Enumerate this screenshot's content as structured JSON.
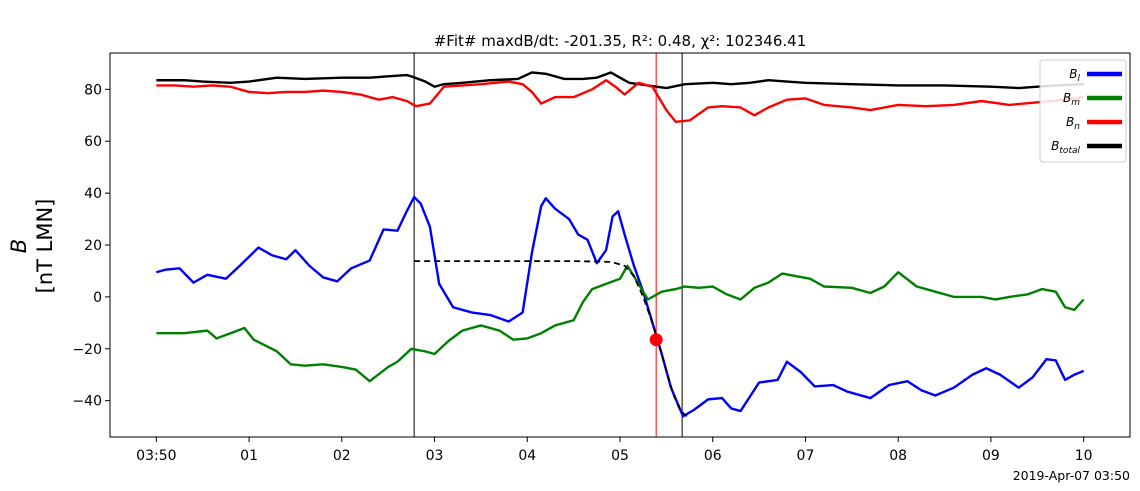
{
  "title": "#Fit# maxdB/dt: -201.35, R²: 0.48, χ²: 102346.41",
  "ylabel_line1": "B",
  "ylabel_line2": "[nT LMN]",
  "date_label": "2019-Apr-07 03:50",
  "chart_data": {
    "type": "line",
    "x_unit": "minutes after 03:50 on 2019-Apr-07",
    "xlim": [
      -0.5,
      10.5
    ],
    "ylim": [
      -54,
      94
    ],
    "grid": false,
    "legend_position": "top-right",
    "x_ticks": [
      {
        "x": 0,
        "label": "03:50"
      },
      {
        "x": 1,
        "label": "01"
      },
      {
        "x": 2,
        "label": "02"
      },
      {
        "x": 3,
        "label": "03"
      },
      {
        "x": 4,
        "label": "04"
      },
      {
        "x": 5,
        "label": "05"
      },
      {
        "x": 6,
        "label": "06"
      },
      {
        "x": 7,
        "label": "07"
      },
      {
        "x": 8,
        "label": "08"
      },
      {
        "x": 9,
        "label": "09"
      },
      {
        "x": 10,
        "label": "10"
      }
    ],
    "y_ticks": [
      {
        "y": -40,
        "label": "−40"
      },
      {
        "y": -20,
        "label": "−20"
      },
      {
        "y": 0,
        "label": "0"
      },
      {
        "y": 20,
        "label": "20"
      },
      {
        "y": 40,
        "label": "40"
      },
      {
        "y": 60,
        "label": "60"
      },
      {
        "y": 80,
        "label": "80"
      }
    ],
    "series": [
      {
        "name": "B_total",
        "legend_main": "B",
        "legend_sub": "total",
        "color": "#000000",
        "points": [
          [
            0,
            83.5
          ],
          [
            0.3,
            83.5
          ],
          [
            0.5,
            83
          ],
          [
            0.8,
            82.5
          ],
          [
            1.0,
            83
          ],
          [
            1.3,
            84.5
          ],
          [
            1.6,
            84
          ],
          [
            2.0,
            84.5
          ],
          [
            2.3,
            84.5
          ],
          [
            2.5,
            85
          ],
          [
            2.7,
            85.5
          ],
          [
            2.75,
            85
          ],
          [
            2.9,
            83
          ],
          [
            3.0,
            81
          ],
          [
            3.1,
            82
          ],
          [
            3.3,
            82.5
          ],
          [
            3.6,
            83.5
          ],
          [
            3.9,
            84
          ],
          [
            4.05,
            86.5
          ],
          [
            4.2,
            86
          ],
          [
            4.4,
            84
          ],
          [
            4.6,
            84
          ],
          [
            4.75,
            84.5
          ],
          [
            4.9,
            86.5
          ],
          [
            5.0,
            84.5
          ],
          [
            5.1,
            82.5
          ],
          [
            5.3,
            81.5
          ],
          [
            5.5,
            80.5
          ],
          [
            5.7,
            82
          ],
          [
            6.0,
            82.5
          ],
          [
            6.2,
            82
          ],
          [
            6.4,
            82.5
          ],
          [
            6.6,
            83.5
          ],
          [
            6.8,
            83
          ],
          [
            7.0,
            82.5
          ],
          [
            7.5,
            82
          ],
          [
            8.0,
            81.5
          ],
          [
            8.5,
            81.5
          ],
          [
            9.0,
            81
          ],
          [
            9.3,
            80.5
          ],
          [
            9.5,
            81
          ],
          [
            9.7,
            81.5
          ],
          [
            10.0,
            82
          ]
        ]
      },
      {
        "name": "B_n",
        "legend_main": "B",
        "legend_sub": "n",
        "color": "#ff0000",
        "points": [
          [
            0,
            81.5
          ],
          [
            0.2,
            81.5
          ],
          [
            0.4,
            81
          ],
          [
            0.6,
            81.5
          ],
          [
            0.8,
            81
          ],
          [
            1.0,
            79
          ],
          [
            1.2,
            78.5
          ],
          [
            1.4,
            79
          ],
          [
            1.6,
            79
          ],
          [
            1.8,
            79.5
          ],
          [
            2.0,
            79
          ],
          [
            2.2,
            78
          ],
          [
            2.4,
            76
          ],
          [
            2.55,
            77
          ],
          [
            2.7,
            75.5
          ],
          [
            2.8,
            73.5
          ],
          [
            2.95,
            74.5
          ],
          [
            3.1,
            81
          ],
          [
            3.3,
            81.5
          ],
          [
            3.5,
            82
          ],
          [
            3.8,
            83
          ],
          [
            3.95,
            82
          ],
          [
            4.05,
            79
          ],
          [
            4.15,
            74.5
          ],
          [
            4.3,
            77
          ],
          [
            4.5,
            77
          ],
          [
            4.7,
            80
          ],
          [
            4.85,
            83.5
          ],
          [
            4.95,
            81
          ],
          [
            5.05,
            78
          ],
          [
            5.2,
            82.5
          ],
          [
            5.35,
            81
          ],
          [
            5.5,
            72
          ],
          [
            5.6,
            67.5
          ],
          [
            5.75,
            68
          ],
          [
            5.95,
            73
          ],
          [
            6.1,
            73.5
          ],
          [
            6.3,
            73
          ],
          [
            6.45,
            70
          ],
          [
            6.6,
            73
          ],
          [
            6.8,
            76
          ],
          [
            7.0,
            76.5
          ],
          [
            7.2,
            74
          ],
          [
            7.5,
            73
          ],
          [
            7.7,
            72
          ],
          [
            8.0,
            74
          ],
          [
            8.3,
            73.5
          ],
          [
            8.6,
            74
          ],
          [
            8.9,
            75.5
          ],
          [
            9.2,
            74
          ],
          [
            9.5,
            75
          ],
          [
            9.8,
            76
          ],
          [
            10.0,
            77
          ]
        ]
      },
      {
        "name": "B_l",
        "legend_main": "B",
        "legend_sub": "l",
        "color": "#0000ff",
        "points": [
          [
            0,
            9.5
          ],
          [
            0.1,
            10.5
          ],
          [
            0.25,
            11
          ],
          [
            0.4,
            5.5
          ],
          [
            0.55,
            8.5
          ],
          [
            0.75,
            7
          ],
          [
            0.9,
            12
          ],
          [
            1.1,
            19
          ],
          [
            1.25,
            16
          ],
          [
            1.4,
            14.5
          ],
          [
            1.5,
            18
          ],
          [
            1.65,
            12
          ],
          [
            1.8,
            7.5
          ],
          [
            1.95,
            6
          ],
          [
            2.1,
            11
          ],
          [
            2.3,
            14
          ],
          [
            2.45,
            26
          ],
          [
            2.6,
            25.5
          ],
          [
            2.7,
            33
          ],
          [
            2.78,
            38.5
          ],
          [
            2.85,
            36
          ],
          [
            2.95,
            27
          ],
          [
            3.05,
            5
          ],
          [
            3.2,
            -4
          ],
          [
            3.4,
            -6
          ],
          [
            3.6,
            -7
          ],
          [
            3.8,
            -9.5
          ],
          [
            3.95,
            -6
          ],
          [
            4.05,
            17
          ],
          [
            4.15,
            35
          ],
          [
            4.2,
            38
          ],
          [
            4.3,
            34
          ],
          [
            4.45,
            30
          ],
          [
            4.55,
            24
          ],
          [
            4.65,
            22
          ],
          [
            4.75,
            13
          ],
          [
            4.85,
            18
          ],
          [
            4.92,
            31
          ],
          [
            4.98,
            33
          ],
          [
            5.05,
            24
          ],
          [
            5.15,
            12
          ],
          [
            5.25,
            2
          ],
          [
            5.35,
            -10
          ],
          [
            5.45,
            -22
          ],
          [
            5.55,
            -35
          ],
          [
            5.68,
            -46
          ],
          [
            5.8,
            -43.5
          ],
          [
            5.95,
            -39.5
          ],
          [
            6.1,
            -39
          ],
          [
            6.2,
            -43
          ],
          [
            6.3,
            -44
          ],
          [
            6.5,
            -33
          ],
          [
            6.7,
            -32
          ],
          [
            6.8,
            -25
          ],
          [
            6.95,
            -29
          ],
          [
            7.1,
            -34.5
          ],
          [
            7.3,
            -34
          ],
          [
            7.45,
            -36.5
          ],
          [
            7.7,
            -39
          ],
          [
            7.9,
            -34
          ],
          [
            8.1,
            -32.5
          ],
          [
            8.25,
            -36
          ],
          [
            8.4,
            -38
          ],
          [
            8.6,
            -35
          ],
          [
            8.8,
            -30
          ],
          [
            8.95,
            -27.5
          ],
          [
            9.1,
            -30
          ],
          [
            9.3,
            -35
          ],
          [
            9.45,
            -31
          ],
          [
            9.6,
            -24
          ],
          [
            9.7,
            -24.5
          ],
          [
            9.8,
            -32
          ],
          [
            9.9,
            -30
          ],
          [
            10.0,
            -28.5
          ]
        ]
      },
      {
        "name": "B_m",
        "legend_main": "B",
        "legend_sub": "m",
        "color": "#008000",
        "points": [
          [
            0,
            -14
          ],
          [
            0.3,
            -14
          ],
          [
            0.55,
            -13
          ],
          [
            0.65,
            -16
          ],
          [
            0.8,
            -14
          ],
          [
            0.95,
            -12
          ],
          [
            1.05,
            -16.5
          ],
          [
            1.3,
            -21
          ],
          [
            1.45,
            -26
          ],
          [
            1.6,
            -26.5
          ],
          [
            1.8,
            -26
          ],
          [
            2.0,
            -27
          ],
          [
            2.15,
            -28
          ],
          [
            2.3,
            -32.5
          ],
          [
            2.5,
            -27
          ],
          [
            2.6,
            -25
          ],
          [
            2.75,
            -20
          ],
          [
            2.9,
            -21
          ],
          [
            3.0,
            -22
          ],
          [
            3.15,
            -17
          ],
          [
            3.3,
            -13
          ],
          [
            3.5,
            -11
          ],
          [
            3.7,
            -13
          ],
          [
            3.85,
            -16.5
          ],
          [
            4.0,
            -16
          ],
          [
            4.15,
            -14
          ],
          [
            4.3,
            -11
          ],
          [
            4.5,
            -9
          ],
          [
            4.6,
            -2
          ],
          [
            4.7,
            3
          ],
          [
            4.85,
            5
          ],
          [
            5.0,
            7
          ],
          [
            5.08,
            12
          ],
          [
            5.15,
            8
          ],
          [
            5.3,
            -1
          ],
          [
            5.45,
            2
          ],
          [
            5.6,
            3
          ],
          [
            5.7,
            4
          ],
          [
            5.85,
            3.5
          ],
          [
            6.0,
            4
          ],
          [
            6.15,
            1
          ],
          [
            6.3,
            -1
          ],
          [
            6.45,
            3.5
          ],
          [
            6.6,
            5.5
          ],
          [
            6.75,
            9
          ],
          [
            6.9,
            8
          ],
          [
            7.05,
            7
          ],
          [
            7.2,
            4
          ],
          [
            7.5,
            3.5
          ],
          [
            7.7,
            1.5
          ],
          [
            7.85,
            4
          ],
          [
            8.0,
            9.5
          ],
          [
            8.2,
            4
          ],
          [
            8.4,
            2
          ],
          [
            8.6,
            0
          ],
          [
            8.9,
            0
          ],
          [
            9.05,
            -1
          ],
          [
            9.2,
            0
          ],
          [
            9.4,
            1
          ],
          [
            9.55,
            3
          ],
          [
            9.7,
            2
          ],
          [
            9.8,
            -4
          ],
          [
            9.9,
            -5
          ],
          [
            10.0,
            -1
          ]
        ]
      }
    ],
    "fit_curve": {
      "color": "#000000",
      "style": "dashed",
      "points": [
        [
          2.78,
          13.8
        ],
        [
          3.5,
          13.8
        ],
        [
          4.0,
          13.8
        ],
        [
          4.5,
          13.8
        ],
        [
          4.9,
          13.5
        ],
        [
          5.05,
          12
        ],
        [
          5.15,
          8
        ],
        [
          5.25,
          0
        ],
        [
          5.35,
          -10
        ],
        [
          5.45,
          -22
        ],
        [
          5.52,
          -31
        ],
        [
          5.58,
          -38
        ],
        [
          5.64,
          -43
        ],
        [
          5.7,
          -45.5
        ],
        [
          5.75,
          -46.5
        ]
      ]
    },
    "vertical_lines": [
      {
        "x": 2.78,
        "color": "#000000"
      },
      {
        "x": 5.39,
        "color": "#ff0000"
      },
      {
        "x": 5.67,
        "color": "#000000"
      }
    ],
    "marker": {
      "x": 5.39,
      "y": -16.5,
      "color": "#ff0000"
    }
  }
}
